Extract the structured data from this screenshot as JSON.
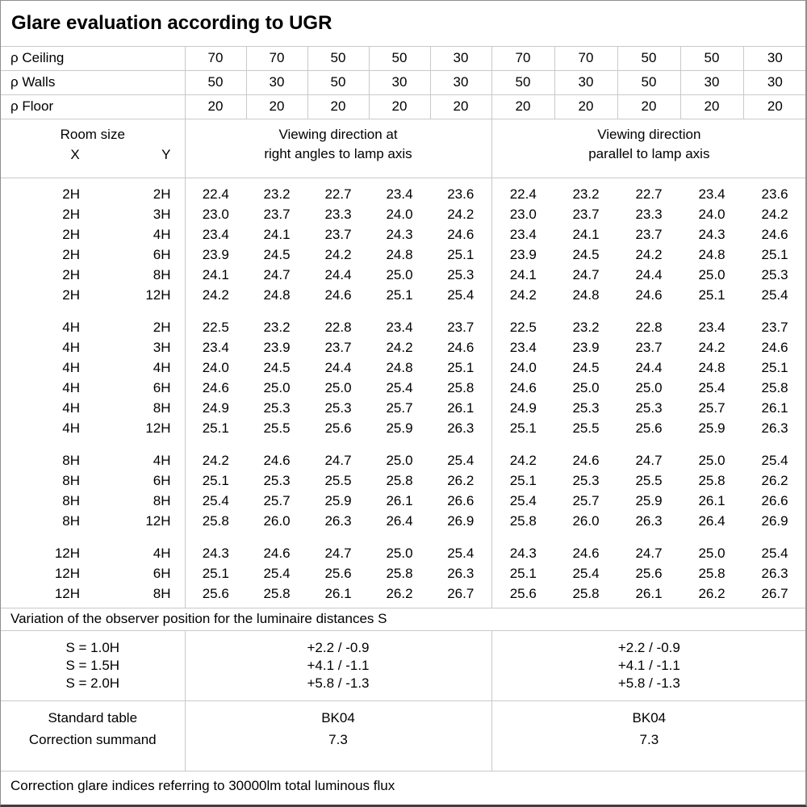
{
  "title": "Glare evaluation according to UGR",
  "colors": {
    "text": "#000000",
    "grid_line": "#c9c9c9",
    "background": "#ffffff",
    "outer_border": "#8f8f8f"
  },
  "reflectance": {
    "rows": [
      {
        "label": "ρ Ceiling",
        "values": [
          "70",
          "70",
          "50",
          "50",
          "30",
          "70",
          "70",
          "50",
          "50",
          "30"
        ]
      },
      {
        "label": "ρ Walls",
        "values": [
          "50",
          "30",
          "50",
          "30",
          "30",
          "50",
          "30",
          "50",
          "30",
          "30"
        ]
      },
      {
        "label": "ρ Floor",
        "values": [
          "20",
          "20",
          "20",
          "20",
          "20",
          "20",
          "20",
          "20",
          "20",
          "20"
        ]
      }
    ]
  },
  "header": {
    "room_size_label": "Room size",
    "x_label": "X",
    "y_label": "Y",
    "right_angles_title": "Viewing direction at\nright angles to lamp axis",
    "parallel_title": "Viewing direction\nparallel to lamp axis"
  },
  "body_blocks": [
    {
      "rows": [
        {
          "x": "2H",
          "y": "2H",
          "right_angles": [
            "22.4",
            "23.2",
            "22.7",
            "23.4",
            "23.6"
          ],
          "parallel": [
            "22.4",
            "23.2",
            "22.7",
            "23.4",
            "23.6"
          ]
        },
        {
          "x": "2H",
          "y": "3H",
          "right_angles": [
            "23.0",
            "23.7",
            "23.3",
            "24.0",
            "24.2"
          ],
          "parallel": [
            "23.0",
            "23.7",
            "23.3",
            "24.0",
            "24.2"
          ]
        },
        {
          "x": "2H",
          "y": "4H",
          "right_angles": [
            "23.4",
            "24.1",
            "23.7",
            "24.3",
            "24.6"
          ],
          "parallel": [
            "23.4",
            "24.1",
            "23.7",
            "24.3",
            "24.6"
          ]
        },
        {
          "x": "2H",
          "y": "6H",
          "right_angles": [
            "23.9",
            "24.5",
            "24.2",
            "24.8",
            "25.1"
          ],
          "parallel": [
            "23.9",
            "24.5",
            "24.2",
            "24.8",
            "25.1"
          ]
        },
        {
          "x": "2H",
          "y": "8H",
          "right_angles": [
            "24.1",
            "24.7",
            "24.4",
            "25.0",
            "25.3"
          ],
          "parallel": [
            "24.1",
            "24.7",
            "24.4",
            "25.0",
            "25.3"
          ]
        },
        {
          "x": "2H",
          "y": "12H",
          "right_angles": [
            "24.2",
            "24.8",
            "24.6",
            "25.1",
            "25.4"
          ],
          "parallel": [
            "24.2",
            "24.8",
            "24.6",
            "25.1",
            "25.4"
          ]
        }
      ]
    },
    {
      "rows": [
        {
          "x": "4H",
          "y": "2H",
          "right_angles": [
            "22.5",
            "23.2",
            "22.8",
            "23.4",
            "23.7"
          ],
          "parallel": [
            "22.5",
            "23.2",
            "22.8",
            "23.4",
            "23.7"
          ]
        },
        {
          "x": "4H",
          "y": "3H",
          "right_angles": [
            "23.4",
            "23.9",
            "23.7",
            "24.2",
            "24.6"
          ],
          "parallel": [
            "23.4",
            "23.9",
            "23.7",
            "24.2",
            "24.6"
          ]
        },
        {
          "x": "4H",
          "y": "4H",
          "right_angles": [
            "24.0",
            "24.5",
            "24.4",
            "24.8",
            "25.1"
          ],
          "parallel": [
            "24.0",
            "24.5",
            "24.4",
            "24.8",
            "25.1"
          ]
        },
        {
          "x": "4H",
          "y": "6H",
          "right_angles": [
            "24.6",
            "25.0",
            "25.0",
            "25.4",
            "25.8"
          ],
          "parallel": [
            "24.6",
            "25.0",
            "25.0",
            "25.4",
            "25.8"
          ]
        },
        {
          "x": "4H",
          "y": "8H",
          "right_angles": [
            "24.9",
            "25.3",
            "25.3",
            "25.7",
            "26.1"
          ],
          "parallel": [
            "24.9",
            "25.3",
            "25.3",
            "25.7",
            "26.1"
          ]
        },
        {
          "x": "4H",
          "y": "12H",
          "right_angles": [
            "25.1",
            "25.5",
            "25.6",
            "25.9",
            "26.3"
          ],
          "parallel": [
            "25.1",
            "25.5",
            "25.6",
            "25.9",
            "26.3"
          ]
        }
      ]
    },
    {
      "rows": [
        {
          "x": "8H",
          "y": "4H",
          "right_angles": [
            "24.2",
            "24.6",
            "24.7",
            "25.0",
            "25.4"
          ],
          "parallel": [
            "24.2",
            "24.6",
            "24.7",
            "25.0",
            "25.4"
          ]
        },
        {
          "x": "8H",
          "y": "6H",
          "right_angles": [
            "25.1",
            "25.3",
            "25.5",
            "25.8",
            "26.2"
          ],
          "parallel": [
            "25.1",
            "25.3",
            "25.5",
            "25.8",
            "26.2"
          ]
        },
        {
          "x": "8H",
          "y": "8H",
          "right_angles": [
            "25.4",
            "25.7",
            "25.9",
            "26.1",
            "26.6"
          ],
          "parallel": [
            "25.4",
            "25.7",
            "25.9",
            "26.1",
            "26.6"
          ]
        },
        {
          "x": "8H",
          "y": "12H",
          "right_angles": [
            "25.8",
            "26.0",
            "26.3",
            "26.4",
            "26.9"
          ],
          "parallel": [
            "25.8",
            "26.0",
            "26.3",
            "26.4",
            "26.9"
          ]
        }
      ]
    },
    {
      "rows": [
        {
          "x": "12H",
          "y": "4H",
          "right_angles": [
            "24.3",
            "24.6",
            "24.7",
            "25.0",
            "25.4"
          ],
          "parallel": [
            "24.3",
            "24.6",
            "24.7",
            "25.0",
            "25.4"
          ]
        },
        {
          "x": "12H",
          "y": "6H",
          "right_angles": [
            "25.1",
            "25.4",
            "25.6",
            "25.8",
            "26.3"
          ],
          "parallel": [
            "25.1",
            "25.4",
            "25.6",
            "25.8",
            "26.3"
          ]
        },
        {
          "x": "12H",
          "y": "8H",
          "right_angles": [
            "25.6",
            "25.8",
            "26.1",
            "26.2",
            "26.7"
          ],
          "parallel": [
            "25.6",
            "25.8",
            "26.1",
            "26.2",
            "26.7"
          ]
        }
      ]
    }
  ],
  "variation_note": "Variation of the observer position for the luminaire distances S",
  "s_section": {
    "labels": [
      "S = 1.0H",
      "S = 1.5H",
      "S = 2.0H"
    ],
    "right_angles_values": [
      "+2.2 / -0.9",
      "+4.1 / -1.1",
      "+5.8 / -1.3"
    ],
    "parallel_values": [
      "+2.2 / -0.9",
      "+4.1 / -1.1",
      "+5.8 / -1.3"
    ]
  },
  "standard_section": {
    "labels": [
      "Standard table",
      "Correction summand"
    ],
    "right_angles_values": [
      "BK04",
      "7.3"
    ],
    "parallel_values": [
      "BK04",
      "7.3"
    ]
  },
  "footer_note": "Correction glare indices referring to 30000lm total luminous flux"
}
